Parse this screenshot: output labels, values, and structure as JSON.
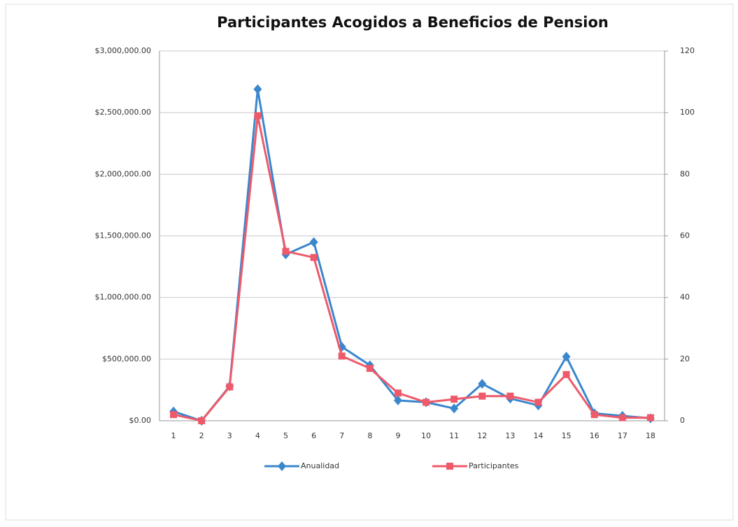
{
  "chart_data": {
    "type": "line",
    "title": "Participantes Acogidos a Beneficios de Pension",
    "categories": [
      1,
      2,
      3,
      4,
      5,
      6,
      7,
      8,
      9,
      10,
      11,
      12,
      13,
      14,
      15,
      16,
      17,
      18
    ],
    "series": [
      {
        "name": "Anualidad",
        "color": "#3a87cc",
        "values": [
          75000,
          0,
          280000,
          2690000,
          1350000,
          1450000,
          600000,
          450000,
          165000,
          150000,
          100000,
          300000,
          180000,
          125000,
          520000,
          60000,
          40000,
          20000
        ]
      },
      {
        "name": "Participantes",
        "color": "#ee5a6a",
        "axis": "y2",
        "values": [
          2,
          0,
          11,
          99,
          55,
          53,
          21,
          17,
          9,
          6,
          7,
          8,
          8,
          6,
          15,
          2,
          1,
          1
        ]
      }
    ],
    "ylim": [
      0,
      3000000
    ],
    "yticks": [
      {
        "value": 0,
        "label": "$0.00"
      },
      {
        "value": 500000,
        "label": "$500,000.00"
      },
      {
        "value": 1000000,
        "label": "$1,000,000.00"
      },
      {
        "value": 1500000,
        "label": "$1,500,000.00"
      },
      {
        "value": 2000000,
        "label": "$2,000,000.00"
      },
      {
        "value": 2500000,
        "label": "$2,500,000.00"
      },
      {
        "value": 3000000,
        "label": "$3,000,000.00"
      }
    ],
    "y2lim": [
      0,
      120
    ],
    "y2ticks": [
      0,
      20,
      40,
      60,
      80,
      100,
      120
    ],
    "grid": true,
    "legend": "bottom"
  }
}
